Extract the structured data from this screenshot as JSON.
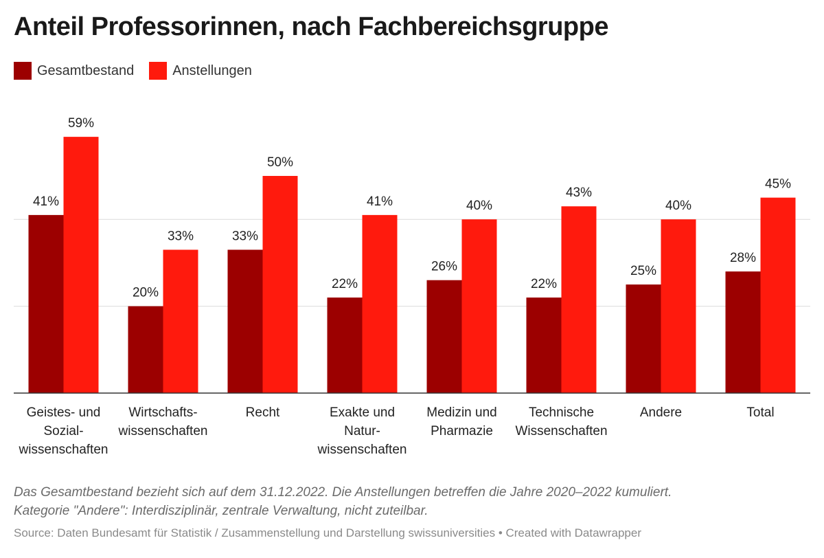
{
  "title": "Anteil Professorinnen, nach Fachbereichsgruppe",
  "legend": [
    {
      "label": "Gesamtbestand",
      "color": "#9c0000"
    },
    {
      "label": "Anstellungen",
      "color": "#ff1a0d"
    }
  ],
  "notes": [
    "Das Gesamtbestand bezieht sich auf dem 31.12.2022. Die Anstellungen betreffen die Jahre 2020–2022 kumuliert.",
    "Kategorie \"Andere\": Interdisziplinär, zentrale Verwaltung, nicht zuteilbar."
  ],
  "source": "Source: Daten Bundesamt für Statistik / Zusammenstellung und Darstellung swissuniversities • Created with Datawrapper",
  "chart_data": {
    "type": "bar",
    "title": "Anteil Professorinnen, nach Fachbereichsgruppe",
    "categories": [
      [
        "Geistes- und",
        "Sozial-",
        "wissenschaften"
      ],
      [
        "Wirtschafts-",
        "wissenschaften"
      ],
      [
        "Recht"
      ],
      [
        "Exakte und",
        "Natur-",
        "wissenschaften"
      ],
      [
        "Medizin und",
        "Pharmazie"
      ],
      [
        "Technische",
        "Wissenschaften"
      ],
      [
        "Andere"
      ],
      [
        "Total"
      ]
    ],
    "series": [
      {
        "name": "Gesamtbestand",
        "color": "#9c0000",
        "values": [
          41,
          20,
          33,
          22,
          26,
          22,
          25,
          28
        ],
        "labels": [
          "41%",
          "20%",
          "33%",
          "22%",
          "26%",
          "22%",
          "25%",
          "28%"
        ]
      },
      {
        "name": "Anstellungen",
        "color": "#ff1a0d",
        "values": [
          59,
          33,
          50,
          41,
          40,
          43,
          40,
          45
        ],
        "labels": [
          "59%",
          "33%",
          "50%",
          "41%",
          "40%",
          "43%",
          "40%",
          "45%"
        ]
      }
    ],
    "unit": "%",
    "ylim": [
      0,
      60
    ],
    "gridlines": [
      20,
      40
    ],
    "grid": true,
    "legend_position": "top-left"
  }
}
